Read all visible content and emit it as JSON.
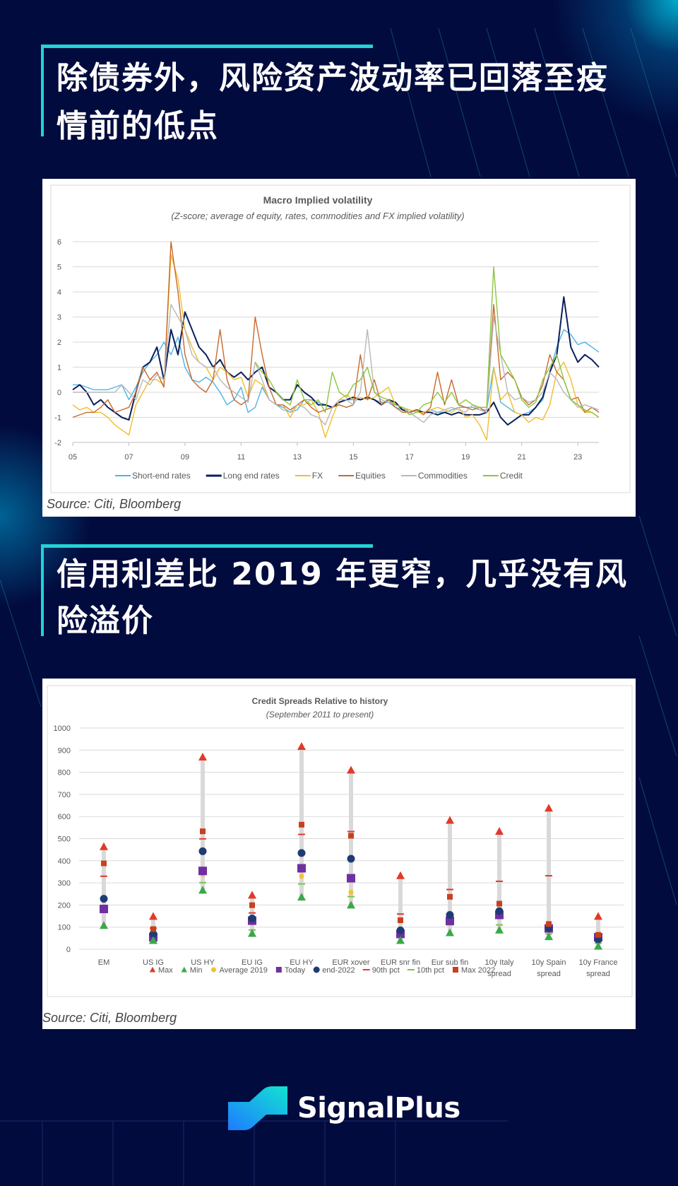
{
  "colors": {
    "background": "#020b3e",
    "accent": "#22d3d6"
  },
  "section1": {
    "title_lines": [
      "除债券外，风险资产波动率已回落至疫",
      "情前的低点"
    ],
    "source": "Source: Citi, Bloomberg"
  },
  "section2": {
    "title_lines": [
      "信用利差比 2019 年更窄，几乎没有风",
      "险溢价"
    ],
    "source": "Source: Citi, Bloomberg"
  },
  "brand": {
    "name": "SignalPlus",
    "icon": "signalplus-logo-icon"
  },
  "chart_data": [
    {
      "type": "line",
      "title": "Macro Implied volatility",
      "subtitle": "(Z-score; average of equity, rates, commodities and FX implied volatility)",
      "ylim": [
        -2,
        6
      ],
      "yticks": [
        "6",
        "5",
        "4",
        "3",
        "2",
        "1",
        "0",
        "-1",
        "-2"
      ],
      "xlim": [
        2005,
        2023.75
      ],
      "xticks": [
        {
          "v": 2005,
          "label": "05"
        },
        {
          "v": 2007,
          "label": "07"
        },
        {
          "v": 2009,
          "label": "09"
        },
        {
          "v": 2011,
          "label": "11"
        },
        {
          "v": 2013,
          "label": "13"
        },
        {
          "v": 2015,
          "label": "15"
        },
        {
          "v": 2017,
          "label": "17"
        },
        {
          "v": 2019,
          "label": "19"
        },
        {
          "v": 2021,
          "label": "21"
        },
        {
          "v": 2023,
          "label": "23"
        }
      ],
      "grid": true,
      "legend_position": "bottom",
      "x_start": 2005,
      "x_step": 0.25,
      "series": [
        {
          "name": "Short-end rates",
          "color": "#4db3e8",
          "values": [
            0.3,
            0.3,
            0.2,
            0.1,
            0.1,
            0.1,
            0.2,
            0.3,
            -0.3,
            0.2,
            0.8,
            1.2,
            1.5,
            2.0,
            1.5,
            2.2,
            1.0,
            0.5,
            0.4,
            0.6,
            0.4,
            0.0,
            -0.5,
            -0.3,
            0.2,
            -0.8,
            -0.6,
            0.2,
            -0.3,
            -0.5,
            -0.6,
            -0.8,
            -0.7,
            -0.3,
            -0.3,
            -0.4,
            -0.5,
            -0.6,
            -0.4,
            -0.3,
            -0.3,
            -0.3,
            -0.2,
            -0.3,
            -0.4,
            -0.4,
            -0.6,
            -0.7,
            -0.7,
            -0.8,
            -0.8,
            -0.7,
            -0.8,
            -0.8,
            -0.7,
            -0.6,
            -0.6,
            -0.6,
            -0.7,
            -0.7,
            1.0,
            -0.4,
            -0.6,
            -0.8,
            -0.9,
            -0.8,
            -0.6,
            -0.3,
            0.8,
            1.8,
            2.5,
            2.3,
            1.9,
            2.0,
            1.8,
            1.6
          ]
        },
        {
          "name": "Long end rates",
          "color": "#0b1f5c",
          "values": [
            0.1,
            0.3,
            0.0,
            -0.5,
            -0.3,
            -0.6,
            -0.8,
            -1.0,
            -1.1,
            0.0,
            1.0,
            1.2,
            1.8,
            0.5,
            2.5,
            1.5,
            3.2,
            2.5,
            1.8,
            1.5,
            1.0,
            1.3,
            0.8,
            0.6,
            0.8,
            0.5,
            0.8,
            1.0,
            0.2,
            0.0,
            -0.3,
            -0.3,
            0.3,
            0.0,
            -0.2,
            -0.5,
            -0.5,
            -0.6,
            -0.4,
            -0.3,
            -0.2,
            -0.3,
            -0.2,
            -0.3,
            -0.5,
            -0.3,
            -0.4,
            -0.7,
            -0.8,
            -0.7,
            -0.8,
            -0.8,
            -0.9,
            -0.8,
            -0.9,
            -0.8,
            -0.9,
            -0.9,
            -0.9,
            -0.8,
            -0.4,
            -1.0,
            -1.3,
            -1.1,
            -0.9,
            -0.9,
            -0.6,
            -0.2,
            0.8,
            1.5,
            3.8,
            1.8,
            1.2,
            1.5,
            1.3,
            1.0
          ]
        },
        {
          "name": "FX",
          "color": "#f2bd2c",
          "values": [
            -0.5,
            -0.7,
            -0.6,
            -0.8,
            -0.8,
            -1.0,
            -1.3,
            -1.5,
            -1.7,
            -0.5,
            0.0,
            0.5,
            0.5,
            0.3,
            5.5,
            4.5,
            2.5,
            1.8,
            1.2,
            1.0,
            0.5,
            1.0,
            0.8,
            0.5,
            0.6,
            -0.2,
            0.5,
            0.3,
            -0.3,
            -0.5,
            -0.5,
            -1.0,
            -0.5,
            -0.5,
            -0.3,
            -0.8,
            -1.8,
            -1.0,
            -0.3,
            -0.1,
            -0.3,
            -0.2,
            -0.3,
            -0.2,
            0.0,
            0.2,
            -0.5,
            -0.6,
            -0.7,
            -0.8,
            -0.8,
            -0.7,
            -0.6,
            -0.7,
            -0.8,
            -0.6,
            -1.0,
            -0.9,
            -1.3,
            -1.9,
            1.0,
            -0.3,
            0.0,
            -0.8,
            -0.9,
            -1.2,
            -1.0,
            -1.1,
            -0.5,
            0.8,
            1.2,
            0.5,
            -0.5,
            -0.8,
            -0.8,
            -1.0
          ]
        },
        {
          "name": "Equities",
          "color": "#c8692a",
          "values": [
            -1.0,
            -0.9,
            -0.8,
            -0.8,
            -0.6,
            -0.3,
            -0.8,
            -0.7,
            -0.6,
            0.0,
            1.0,
            0.5,
            0.8,
            0.2,
            6.0,
            4.0,
            1.5,
            0.5,
            0.2,
            0.0,
            0.5,
            2.5,
            0.5,
            -0.3,
            -0.5,
            -0.3,
            3.0,
            1.5,
            0.2,
            -0.5,
            -0.5,
            -0.7,
            -0.5,
            -0.3,
            -0.6,
            -0.8,
            -0.7,
            -0.6,
            -0.5,
            -0.6,
            -0.5,
            1.5,
            -0.3,
            0.5,
            -0.5,
            -0.3,
            -0.6,
            -0.8,
            -0.8,
            -0.7,
            -0.9,
            -0.6,
            0.8,
            -0.5,
            0.5,
            -0.5,
            -0.6,
            -0.7,
            -0.6,
            -0.8,
            3.5,
            0.5,
            0.8,
            0.5,
            -0.2,
            -0.5,
            -0.3,
            0.3,
            1.5,
            0.8,
            0.5,
            -0.3,
            -0.2,
            -0.8,
            -0.6,
            -0.8
          ]
        },
        {
          "name": "Commodities",
          "color": "#b8b8b8",
          "values": [
            0.0,
            0.0,
            0.0,
            0.0,
            0.0,
            0.0,
            0.0,
            0.3,
            0.0,
            -0.3,
            0.5,
            0.3,
            0.7,
            0.5,
            3.5,
            3.0,
            2.5,
            1.5,
            1.2,
            1.0,
            1.0,
            0.5,
            0.2,
            0.0,
            -0.2,
            -0.4,
            1.2,
            0.5,
            -0.3,
            -0.5,
            -0.7,
            -0.8,
            -0.5,
            -0.6,
            -0.9,
            -1.0,
            -1.3,
            -0.6,
            -0.3,
            -0.3,
            -0.5,
            0.0,
            2.5,
            0.0,
            -0.3,
            -0.4,
            -0.5,
            -0.6,
            -0.8,
            -1.0,
            -1.2,
            -0.9,
            -0.8,
            -0.7,
            -0.6,
            -0.7,
            -0.8,
            -0.5,
            -0.7,
            -0.8,
            3.0,
            1.5,
            0.0,
            -0.3,
            -0.2,
            -0.4,
            -0.3,
            0.0,
            0.8,
            0.5,
            0.0,
            -0.3,
            -0.6,
            -0.5,
            -0.6,
            -0.7
          ]
        },
        {
          "name": "Credit",
          "color": "#8cc63f",
          "values": [
            null,
            null,
            null,
            null,
            null,
            null,
            null,
            null,
            null,
            null,
            null,
            null,
            null,
            null,
            null,
            null,
            null,
            null,
            null,
            null,
            null,
            null,
            null,
            null,
            null,
            null,
            1.2,
            0.8,
            0.5,
            0.0,
            -0.3,
            -0.5,
            0.5,
            -0.3,
            -0.5,
            -0.3,
            -0.8,
            0.8,
            0.0,
            -0.2,
            0.3,
            0.5,
            1.0,
            0.0,
            -0.2,
            -0.3,
            -0.5,
            -0.6,
            -0.9,
            -0.8,
            -0.5,
            -0.4,
            0.0,
            -0.4,
            0.0,
            -0.5,
            -0.3,
            -0.5,
            -0.6,
            -0.6,
            5.0,
            1.5,
            1.0,
            0.5,
            -0.3,
            -0.6,
            -0.4,
            0.5,
            1.0,
            1.5,
            0.5,
            -0.3,
            -0.5,
            -0.7,
            -0.8,
            -1.0
          ]
        }
      ]
    },
    {
      "type": "scatter",
      "title": "Credit Spreads Relative to history",
      "subtitle": "(September 2011 to present)",
      "ylim": [
        0,
        1000
      ],
      "yticks": [
        "1000",
        "900",
        "800",
        "700",
        "600",
        "500",
        "400",
        "300",
        "200",
        "100",
        "0"
      ],
      "grid": true,
      "legend_position": "bottom",
      "categories": [
        [
          "EM"
        ],
        [
          "US IG"
        ],
        [
          "US HY"
        ],
        [
          "EU IG"
        ],
        [
          "EU HY"
        ],
        [
          "EUR xover"
        ],
        [
          "EUR snr fin"
        ],
        [
          "Eur sub fin"
        ],
        [
          "10y Italy",
          "spread"
        ],
        [
          "10y Spain",
          "spread"
        ],
        [
          "10y France",
          "spread"
        ]
      ],
      "series": [
        {
          "name": "Max",
          "marker": "triangle",
          "color": "#e03a2a",
          "values": [
            464,
            149,
            869,
            245,
            917,
            810,
            333,
            583,
            533,
            638,
            149
          ]
        },
        {
          "name": "Min",
          "marker": "triangle",
          "color": "#3aa84a",
          "values": [
            108,
            40,
            267,
            72,
            236,
            200,
            40,
            75,
            87,
            57,
            14
          ]
        },
        {
          "name": "Average 2019",
          "marker": "dot",
          "color": "#f2c230",
          "values": [
            174,
            62,
            339,
            120,
            330,
            257,
            75,
            117,
            158,
            94,
            51
          ]
        },
        {
          "name": "Today",
          "marker": "square",
          "color": "#7030a0",
          "values": [
            182,
            54,
            354,
            129,
            366,
            321,
            69,
            128,
            155,
            94,
            54
          ]
        },
        {
          "name": "end-2022",
          "marker": "circle",
          "color": "#1f3b73",
          "values": [
            228,
            69,
            443,
            139,
            435,
            409,
            85,
            155,
            172,
            96,
            44
          ]
        },
        {
          "name": "90th pct",
          "marker": "dash",
          "color": "#e03a2a",
          "values": [
            330,
            95,
            499,
            164,
            519,
            532,
            159,
            270,
            307,
            332,
            65
          ]
        },
        {
          "name": "10th pct",
          "marker": "dash",
          "color": "#7fbf4d",
          "values": [
            168,
            51,
            301,
            87,
            295,
            238,
            62,
            110,
            110,
            69,
            27
          ]
        },
        {
          "name": "Max 2022",
          "marker": "small-square",
          "color": "#c8401e",
          "values": [
            388,
            91,
            533,
            199,
            563,
            513,
            131,
            237,
            206,
            114,
            65
          ]
        }
      ]
    }
  ]
}
